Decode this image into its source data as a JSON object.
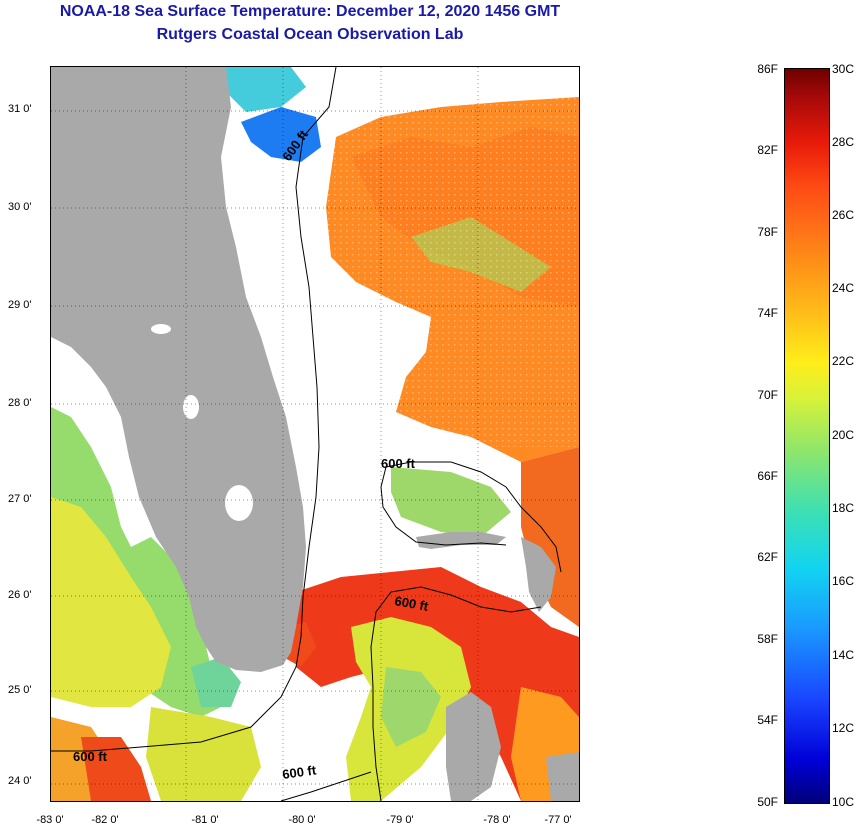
{
  "header": {
    "title": "NOAA-18 Sea Surface Temperature:  December 12, 2020 1456 GMT",
    "subtitle": "Rutgers Coastal Ocean Observation Lab"
  },
  "map": {
    "latitude_labels": [
      "31 0'",
      "30 0'",
      "29 0'",
      "28 0'",
      "27 0'",
      "26 0'",
      "25 0'",
      "24 0'"
    ],
    "longitude_labels": [
      "-83 0'",
      "-82 0'",
      "-81 0'",
      "-80 0'",
      "-79 0'",
      "-78 0'",
      "-77 0'"
    ],
    "contour_labels": [
      "600 ft",
      "600 ft",
      "600 ft",
      "600 ft",
      "600 ft"
    ],
    "colors": {
      "land": "#a9a9a9",
      "cloud": "#ffffff",
      "warm_gulf_stream": "#ee3a1a",
      "orange_water": "#ff8a22",
      "yellow_water": "#e6e838",
      "green_water": "#8fdc62",
      "cold_water": "#1e7cf2"
    }
  },
  "colorbar": {
    "fahrenheit_labels": [
      "86F",
      "82F",
      "78F",
      "74F",
      "70F",
      "66F",
      "62F",
      "58F",
      "54F",
      "50F"
    ],
    "celsius_labels": [
      "30C",
      "28C",
      "26C",
      "24C",
      "22C",
      "20C",
      "18C",
      "16C",
      "14C",
      "12C",
      "10C"
    ]
  }
}
